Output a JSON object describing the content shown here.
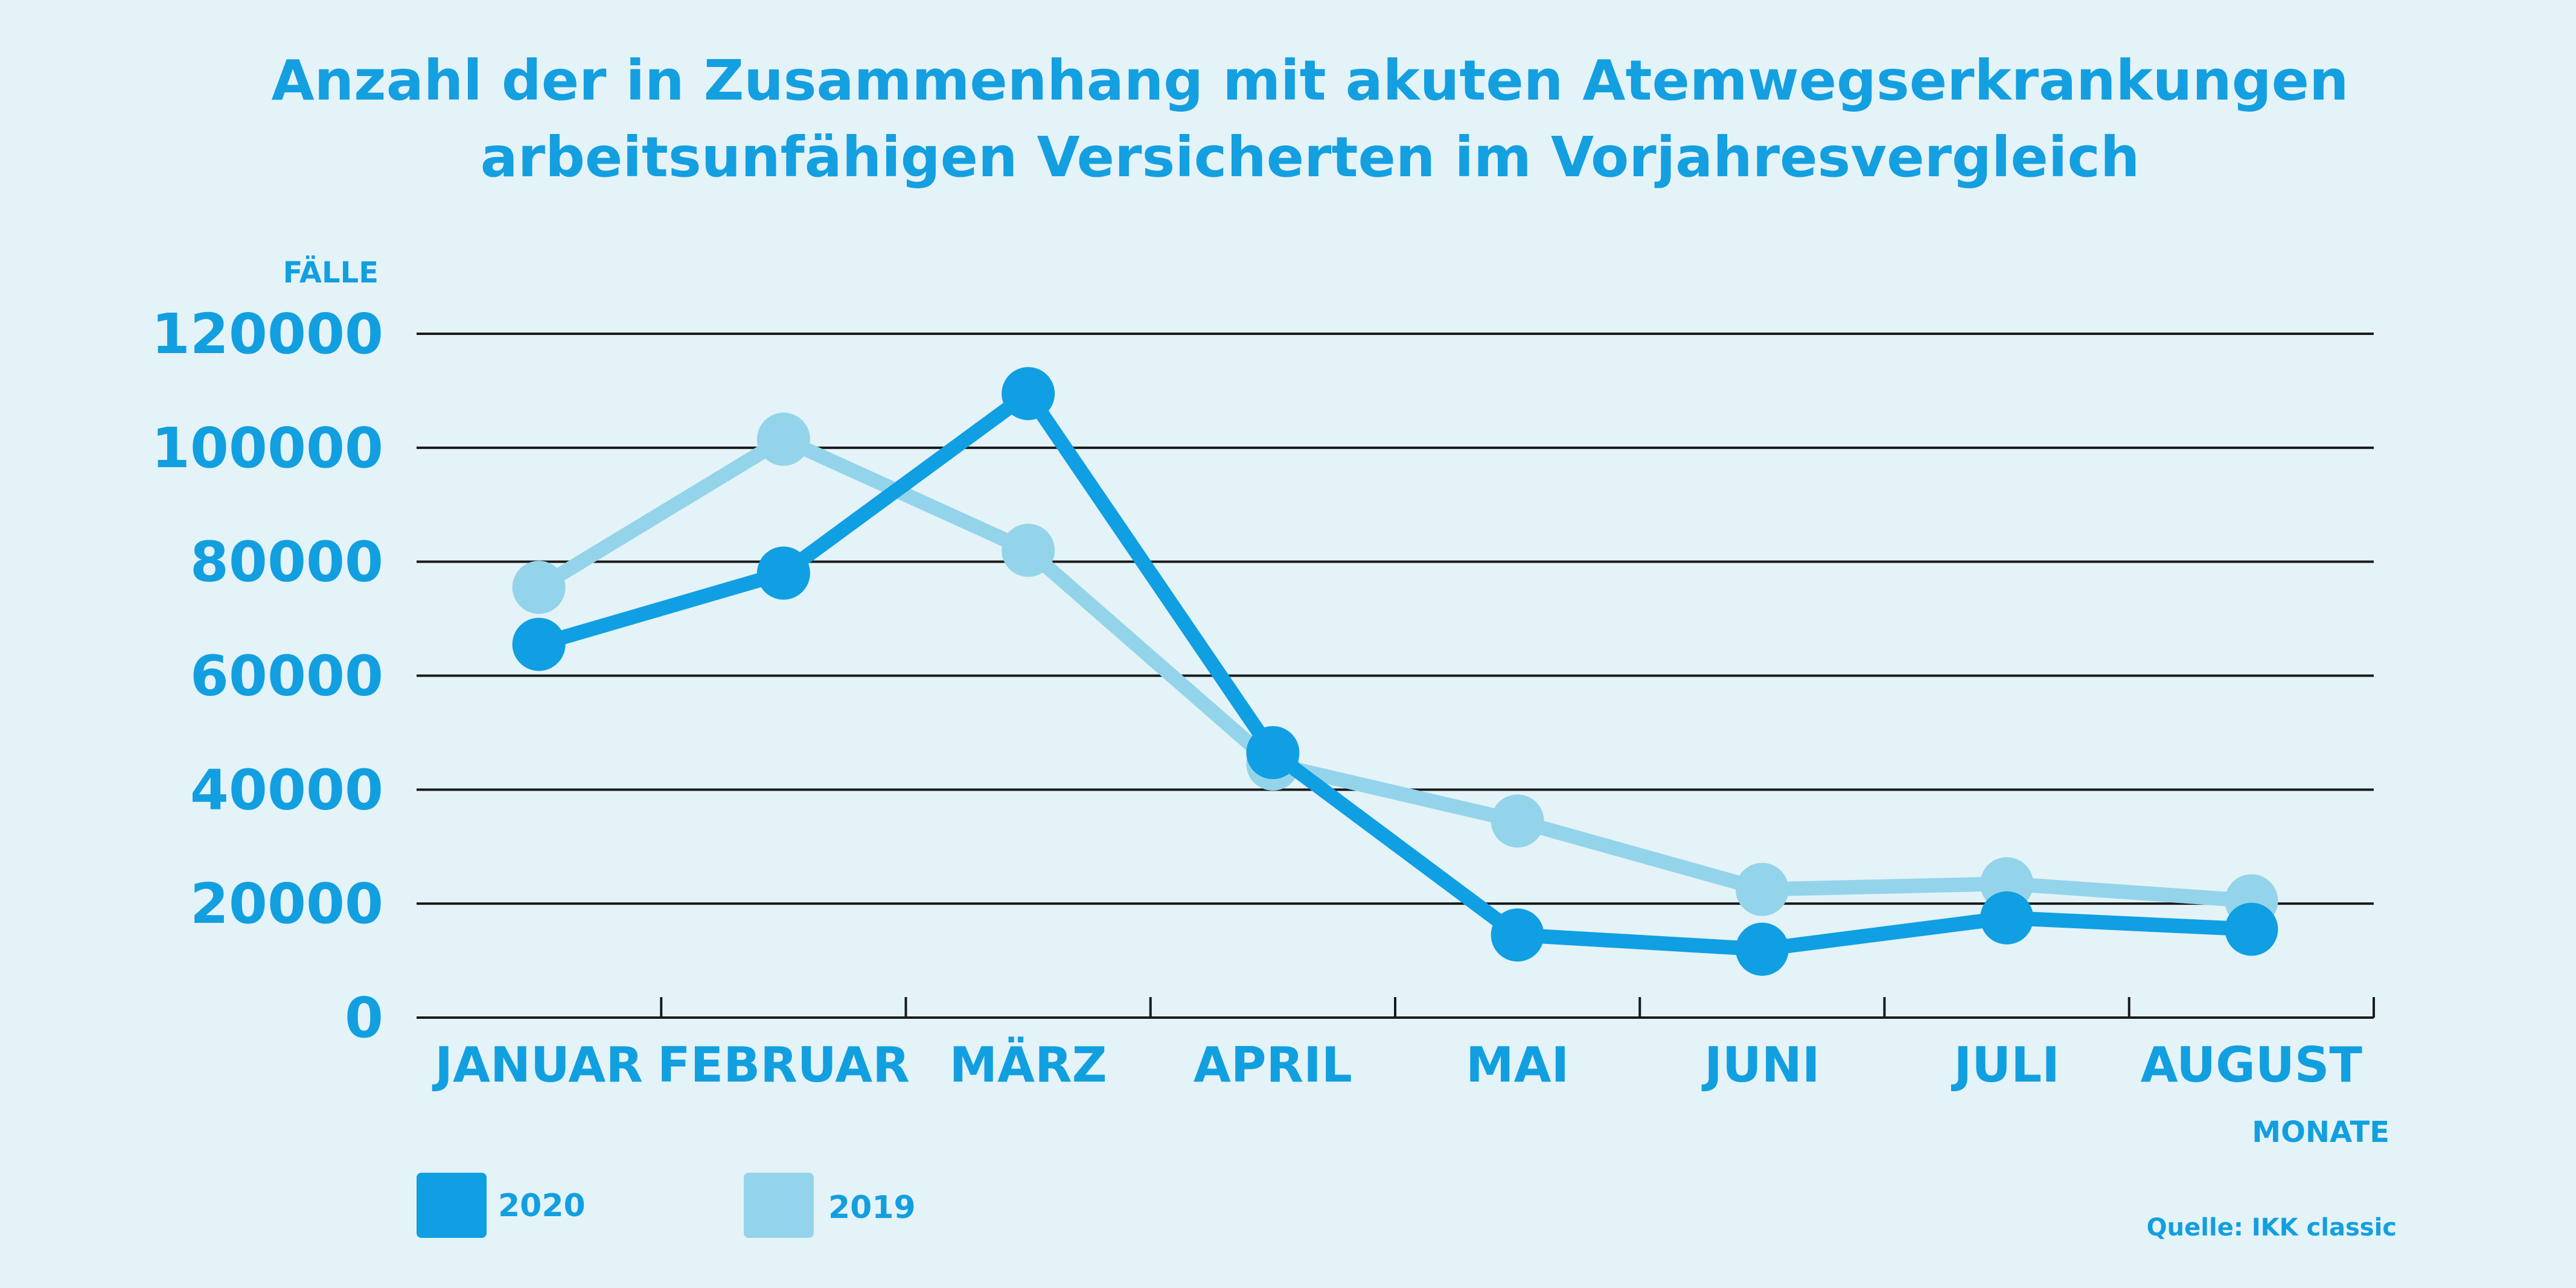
{
  "chart_data": {
    "type": "line",
    "title_lines": [
      "Anzahl der in Zusammenhang mit akuten Atemwegserkrankungen",
      "arbeitsunfähigen Versicherten im Vorjahresvergleich"
    ],
    "ylabel": "FÄLLE",
    "xlabel": "MONATE",
    "ylim": [
      0,
      120000
    ],
    "yticks": [
      "0",
      "20000",
      "40000",
      "60000",
      "80000",
      "100000",
      "120000"
    ],
    "categories": [
      "JANUAR",
      "FEBRUAR",
      "MÄRZ",
      "APRIL",
      "MAI",
      "JUNI",
      "JULI",
      "AUGUST"
    ],
    "series": [
      {
        "name": "2020",
        "color": "#0f9fe2",
        "values": [
          65500,
          78000,
          109500,
          46500,
          14500,
          12000,
          17500,
          15500
        ]
      },
      {
        "name": "2019",
        "color": "#94d4ea",
        "values": [
          75500,
          101500,
          82000,
          44500,
          34500,
          22500,
          23500,
          20500
        ]
      }
    ],
    "grid": true,
    "legend_position": "bottom-left",
    "source": "Quelle: IKK classic"
  }
}
